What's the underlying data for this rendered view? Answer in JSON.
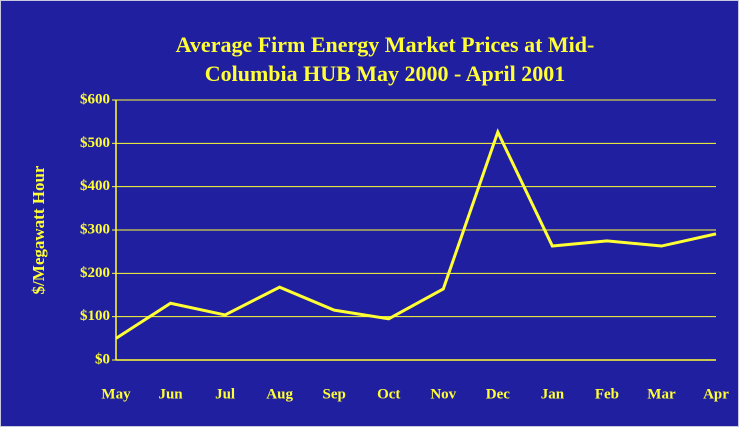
{
  "chart_data": {
    "type": "line",
    "title": [
      "Average Firm Energy Market Prices at Mid-",
      "Columbia HUB May 2000 - April 2001"
    ],
    "y_label": "$/Megawatt Hour",
    "categories": [
      "May",
      "Jun",
      "Jul",
      "Aug",
      "Sep",
      "Oct",
      "Nov",
      "Dec",
      "Jan",
      "Feb",
      "Mar",
      "Apr"
    ],
    "series": [
      {
        "color": "#ffff33",
        "values": [
          50,
          131,
          104,
          168,
          115,
          95,
          164,
          526,
          263,
          275,
          263,
          291
        ]
      }
    ],
    "ylim": [
      0,
      600
    ],
    "yticks": [
      {
        "value": 0,
        "label": "$0"
      },
      {
        "value": 100,
        "label": "$100"
      },
      {
        "value": 200,
        "label": "$200"
      },
      {
        "value": 300,
        "label": "$300"
      },
      {
        "value": 400,
        "label": "$400"
      },
      {
        "value": 500,
        "label": "$500"
      },
      {
        "value": 600,
        "label": "$600"
      }
    ],
    "grid": true
  }
}
